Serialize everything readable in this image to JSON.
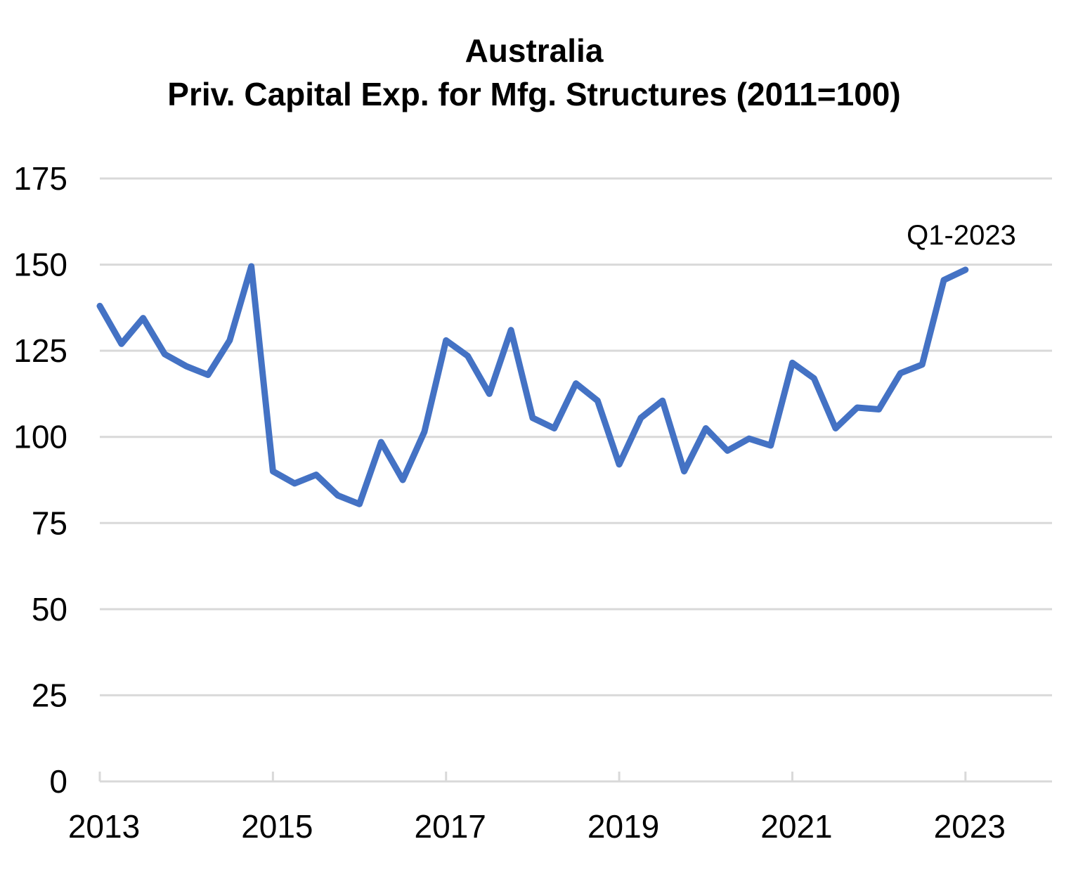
{
  "chart_data": {
    "type": "line",
    "title_line1": "Australia",
    "title_line2": "Priv. Capital Exp. for Mfg. Structures (2011=100)",
    "xlabel": "",
    "ylabel": "",
    "ylim": [
      0,
      175
    ],
    "yticks": [
      0,
      25,
      50,
      75,
      100,
      125,
      150,
      175
    ],
    "ytick_labels": [
      "0",
      "25",
      "50",
      "75",
      "100",
      "125",
      "150",
      "175"
    ],
    "xlim": [
      2013.0,
      2024.0
    ],
    "xticks": [
      2013,
      2015,
      2017,
      2019,
      2021,
      2023
    ],
    "xtick_labels": [
      "2013",
      "2015",
      "2017",
      "2019",
      "2021",
      "2023"
    ],
    "grid": true,
    "legend": "none",
    "annotation": "Q1-2023",
    "series": [
      {
        "color": "#4472c4",
        "x": [
          2013.0,
          2013.25,
          2013.5,
          2013.75,
          2014.0,
          2014.25,
          2014.5,
          2014.75,
          2015.0,
          2015.25,
          2015.5,
          2015.75,
          2016.0,
          2016.25,
          2016.5,
          2016.75,
          2017.0,
          2017.25,
          2017.5,
          2017.75,
          2018.0,
          2018.25,
          2018.5,
          2018.75,
          2019.0,
          2019.25,
          2019.5,
          2019.75,
          2020.0,
          2020.25,
          2020.5,
          2020.75,
          2021.0,
          2021.25,
          2021.5,
          2021.75,
          2022.0,
          2022.25,
          2022.5,
          2022.75,
          2023.0
        ],
        "values": [
          138,
          127,
          134.5,
          124,
          120.5,
          118,
          128,
          149.5,
          90,
          86.5,
          89,
          83,
          80.5,
          98.5,
          87.5,
          101.5,
          128,
          123.5,
          112.5,
          131,
          105.5,
          102.5,
          115.5,
          110.5,
          92,
          105.5,
          110.5,
          90,
          102.5,
          96,
          99.5,
          97.5,
          121.5,
          117,
          102.5,
          108.5,
          108,
          118.5,
          121,
          145.5,
          148.5
        ]
      }
    ]
  }
}
